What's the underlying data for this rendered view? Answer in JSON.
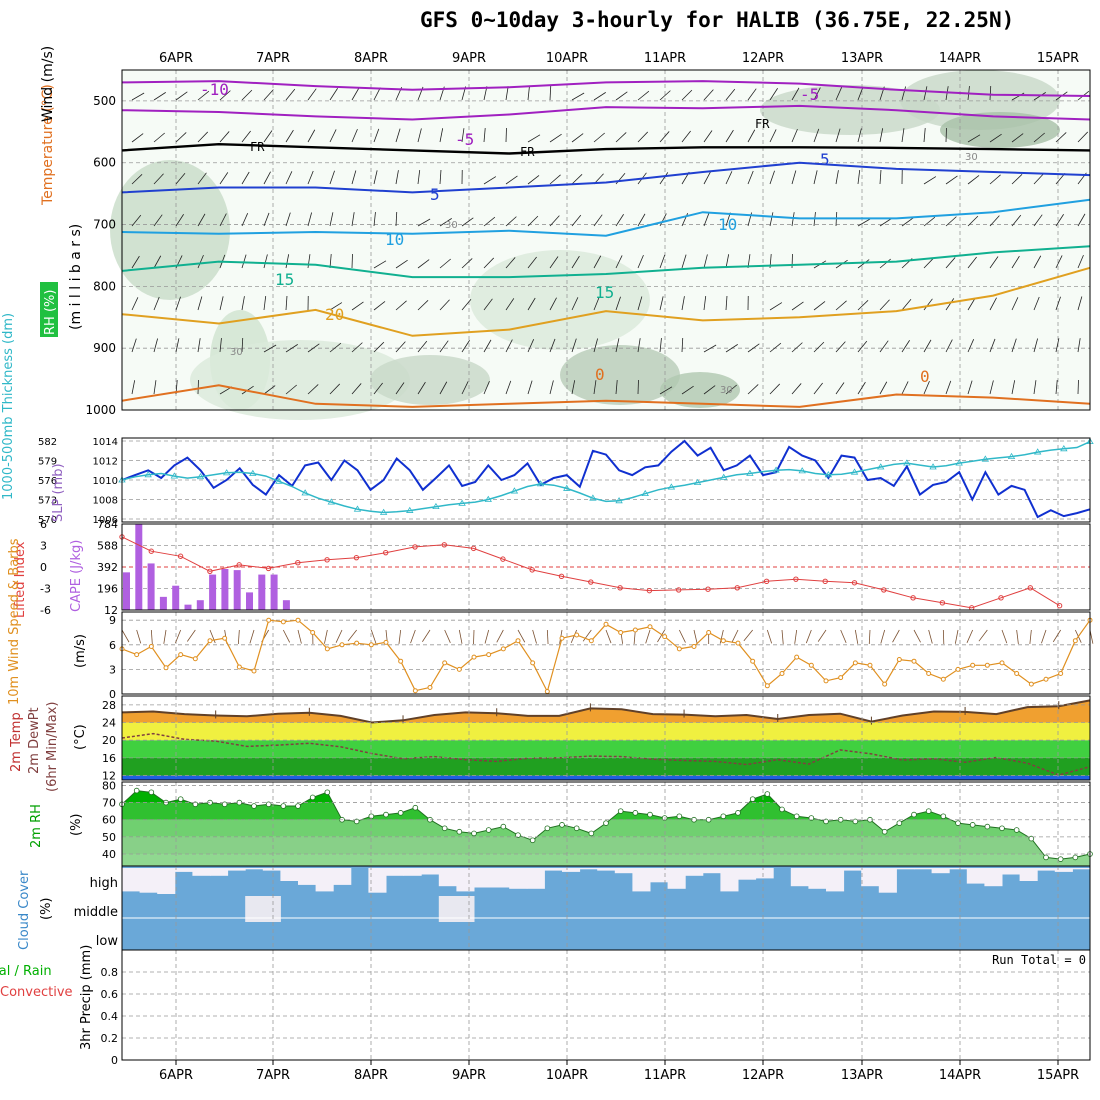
{
  "title": "GFS 0~10day 3-hourly for HALIB (36.75E, 22.25N)",
  "chart_data": [
    {
      "type": "heatmap",
      "panel": "upper-air",
      "ylabel_parts": [
        "RH (%)",
        "Temperature (°C)",
        "Wind (m/s)"
      ],
      "ylabel2": "(m i l l i b a r s)",
      "ylim": [
        1000,
        450
      ],
      "yticks": [
        500,
        600,
        700,
        800,
        900,
        1000
      ],
      "x_top": [
        "6APR",
        "7APR",
        "8APR",
        "9APR",
        "10APR",
        "11APR",
        "12APR",
        "13APR",
        "14APR",
        "15APR"
      ],
      "temperature_contours": [
        {
          "label": "-10",
          "color": "#a020c0",
          "pressure": [
            470,
            468,
            476,
            482,
            478,
            470,
            468,
            472,
            482,
            490,
            492
          ]
        },
        {
          "label": "-5",
          "color": "#a020c0",
          "pressure": [
            515,
            518,
            525,
            530,
            522,
            510,
            512,
            508,
            515,
            525,
            530
          ]
        },
        {
          "label": "FR",
          "color": "#000000",
          "pressure": [
            580,
            570,
            575,
            580,
            585,
            578,
            575,
            575,
            576,
            578,
            580
          ]
        },
        {
          "label": "5",
          "color": "#2040d0",
          "pressure": [
            648,
            640,
            640,
            648,
            640,
            632,
            615,
            600,
            610,
            615,
            620
          ]
        },
        {
          "label": "10",
          "color": "#20a0e0",
          "pressure": [
            712,
            715,
            712,
            715,
            710,
            718,
            680,
            690,
            690,
            680,
            660
          ]
        },
        {
          "label": "15",
          "color": "#10b090",
          "pressure": [
            775,
            760,
            765,
            785,
            785,
            780,
            770,
            765,
            760,
            745,
            735
          ]
        },
        {
          "label": "20",
          "color": "#e0a020",
          "pressure": [
            845,
            860,
            838,
            880,
            870,
            840,
            855,
            850,
            840,
            815,
            770
          ]
        },
        {
          "label": "0",
          "color": "#e07020",
          "pressure": [
            985,
            960,
            990,
            995,
            990,
            985,
            990,
            995,
            975,
            980,
            990
          ]
        }
      ],
      "contour_labels": [
        "-10",
        "-5",
        "-5",
        "FR",
        "FR",
        "FR",
        "5",
        "5",
        "10",
        "10",
        "15",
        "15",
        "20",
        "0",
        "0"
      ],
      "rh_labels": [
        "30",
        "30",
        "30",
        "30"
      ]
    },
    {
      "type": "line",
      "panel": "pressure",
      "ylabel_left": "1000-500mb Thickness (dm)",
      "ylabel_right": "SLP (mb)",
      "left_ticks": [
        570,
        573,
        576,
        579,
        582
      ],
      "right_ticks": [
        1006,
        1008,
        1010,
        1012,
        1014
      ],
      "series": [
        {
          "name": "SLP (mb)",
          "color": "#1030d0",
          "values": [
            1010.0,
            1010.5,
            1011.0,
            1010.2,
            1011.5,
            1012.3,
            1011.0,
            1009.2,
            1010.0,
            1011.2,
            1009.5,
            1008.5,
            1010.5,
            1009.4,
            1011.5,
            1011.8,
            1010.0,
            1012.0,
            1011.0,
            1009.0,
            1010.0,
            1012.2,
            1011.0,
            1009.0,
            1010.2,
            1011.5,
            1009.4,
            1009.8,
            1011.5,
            1010.0,
            1010.5,
            1011.7,
            1009.5,
            1010.2,
            1010.5,
            1009.3,
            1013.0,
            1012.6,
            1011.0,
            1010.5,
            1011.3,
            1011.5,
            1012.9,
            1014.0,
            1012.5,
            1013.3,
            1011.0,
            1011.5,
            1012.5,
            1010.5,
            1010.8,
            1013.4,
            1012.5,
            1012.0,
            1010.2,
            1012.5,
            1012.3,
            1010.0,
            1010.2,
            1009.4,
            1011.4,
            1008.5,
            1009.5,
            1009.8,
            1010.8,
            1008.0,
            1010.8,
            1008.5,
            1009.4,
            1009.0,
            1006.2,
            1006.9,
            1006.3,
            1006.6,
            1007.0
          ]
        },
        {
          "name": "Thickness (dm)",
          "color": "#30b8c8",
          "values": [
            576.0,
            576.5,
            576.8,
            577.0,
            576.6,
            576.3,
            576.5,
            576.8,
            577.1,
            577.2,
            577.0,
            576.6,
            575.8,
            575.0,
            574.0,
            573.2,
            572.6,
            572.0,
            571.5,
            571.2,
            571.0,
            571.1,
            571.3,
            571.6,
            571.9,
            572.2,
            572.4,
            572.6,
            573.0,
            573.6,
            574.3,
            575.0,
            575.4,
            575.2,
            574.7,
            574.0,
            573.2,
            572.7,
            572.8,
            573.3,
            573.9,
            574.5,
            574.9,
            575.2,
            575.6,
            576.0,
            576.4,
            576.8,
            577.0,
            577.3,
            577.5,
            577.6,
            577.4,
            577.0,
            576.8,
            576.9,
            577.2,
            577.6,
            578.0,
            578.4,
            578.6,
            578.3,
            578.0,
            578.2,
            578.6,
            578.9,
            579.2,
            579.4,
            579.6,
            579.9,
            580.3,
            580.6,
            580.8,
            581.0,
            581.9
          ]
        }
      ]
    },
    {
      "type": "bar",
      "panel": "stability",
      "ylabel_left": "Lifted Index",
      "ylabel_right": "CAPE (J/kg)",
      "left_ticks": [
        "6",
        "3",
        "0",
        "-3",
        "-6"
      ],
      "right_ticks": [
        "12",
        "196",
        "392",
        "588",
        "784"
      ],
      "series": [
        {
          "name": "CAPE (J/kg)",
          "color": "#b060e0",
          "values": [
            350,
            780,
            430,
            130,
            230,
            60,
            100,
            330,
            380,
            370,
            170,
            330,
            330,
            100
          ]
        },
        {
          "name": "Lifted Index",
          "color": "#e04040",
          "values": [
            -4.2,
            -2.2,
            -1.5,
            0.6,
            -0.3,
            0.2,
            -0.6,
            -1.0,
            -1.3,
            -2.0,
            -2.8,
            -3.1,
            -2.6,
            -1.1,
            0.4,
            1.3,
            2.1,
            2.9,
            3.3,
            3.2,
            3.1,
            2.9,
            2.0,
            1.7,
            2.0,
            2.2,
            3.2,
            4.3,
            5.0,
            5.7,
            4.3,
            2.9,
            5.4
          ]
        }
      ]
    },
    {
      "type": "line",
      "panel": "wind10m",
      "ylabel": "10m Wind Speed & Barbs",
      "yunit": "(m/s)",
      "yticks": [
        0,
        3,
        6,
        9
      ],
      "series": [
        {
          "name": "10m Wind Speed",
          "color": "#e09020",
          "values": [
            5.5,
            4.8,
            5.8,
            3.2,
            4.8,
            4.3,
            6.5,
            6.8,
            3.3,
            2.8,
            9.0,
            8.8,
            9.0,
            7.5,
            5.5,
            6.0,
            6.2,
            6.0,
            6.3,
            4.0,
            0.4,
            0.8,
            3.8,
            3.0,
            4.5,
            4.8,
            5.5,
            6.5,
            3.8,
            0.3,
            6.8,
            7.2,
            6.5,
            8.5,
            7.5,
            7.8,
            8.2,
            7.0,
            5.5,
            5.8,
            7.5,
            6.5,
            6.2,
            4.0,
            1.0,
            2.5,
            4.5,
            3.5,
            1.6,
            2.0,
            3.8,
            3.5,
            1.2,
            4.2,
            4.0,
            2.5,
            1.8,
            3.0,
            3.5,
            3.5,
            3.8,
            2.5,
            1.2,
            1.8,
            2.5,
            6.5,
            9.0
          ]
        }
      ]
    },
    {
      "type": "area",
      "panel": "temperature2m",
      "ylabel_parts": [
        "2m Temp",
        "2m DewPt",
        "(6hr Min/Max)"
      ],
      "yunit": "(°C)",
      "yticks": [
        12,
        16,
        20,
        24,
        28
      ],
      "series": [
        {
          "name": "2m Temp",
          "color": "#604028",
          "values": [
            26.3,
            26.5,
            25.9,
            25.6,
            25.4,
            26.0,
            26.2,
            25.5,
            24.0,
            24.5,
            25.7,
            26.3,
            26.1,
            25.5,
            25.5,
            27.2,
            27.0,
            25.9,
            25.8,
            25.4,
            25.7,
            24.8,
            25.7,
            26.0,
            24.2,
            25.6,
            26.5,
            26.4,
            25.9,
            27.5,
            27.7,
            29.0
          ]
        },
        {
          "name": "2m DewPt",
          "color": "#804040",
          "values": [
            20.5,
            21.5,
            20.2,
            19.8,
            18.6,
            18.9,
            19.3,
            18.5,
            17.0,
            15.8,
            16.3,
            15.6,
            15.2,
            15.9,
            16.0,
            16.4,
            16.3,
            15.7,
            15.4,
            15.2,
            14.5,
            15.6,
            14.6,
            17.8,
            16.9,
            15.5,
            15.8,
            15.0,
            16.1,
            14.8,
            12.1,
            14.0
          ]
        }
      ]
    },
    {
      "type": "area",
      "panel": "rh2m",
      "ylabel": "2m RH",
      "yunit": "(%)",
      "yticks": [
        40,
        50,
        60,
        70,
        80
      ],
      "series": [
        {
          "name": "2m RH",
          "color": "#00d000",
          "values": [
            69,
            77,
            76,
            70,
            72,
            69,
            70,
            69,
            70,
            68,
            69,
            68,
            68,
            73,
            76,
            60,
            59,
            62,
            63,
            64,
            67,
            60,
            55,
            53,
            52,
            54,
            56,
            51,
            48,
            55,
            57,
            55,
            52,
            58,
            65,
            64,
            63,
            61,
            62,
            60,
            60,
            62,
            64,
            72,
            75,
            66,
            62,
            61,
            59,
            60,
            59,
            60,
            53,
            58,
            63,
            65,
            62,
            58,
            57,
            56,
            55,
            54,
            49,
            38,
            37,
            38,
            40
          ]
        }
      ]
    },
    {
      "type": "area",
      "panel": "cloudcover",
      "ylabel": "Cloud Cover",
      "yunit": "(%)",
      "levels": [
        "high",
        "middle",
        "low"
      ],
      "high_values": [
        10,
        5,
        0,
        85,
        70,
        70,
        90,
        95,
        90,
        50,
        35,
        10,
        35,
        100,
        5,
        70,
        70,
        75,
        30,
        10,
        25,
        25,
        20,
        20,
        90,
        85,
        95,
        90,
        80,
        10,
        45,
        20,
        70,
        80,
        10,
        55,
        60,
        100,
        30,
        20,
        10,
        90,
        30,
        5,
        95,
        95,
        80,
        95,
        40,
        30,
        75,
        50,
        90,
        85,
        95
      ],
      "middle_values": [
        15,
        15,
        15,
        15,
        15,
        15,
        15,
        10,
        5,
        15,
        15,
        15,
        15,
        15,
        15,
        15,
        15,
        15,
        10,
        10,
        20,
        20,
        20,
        20,
        20,
        20,
        15,
        15,
        15,
        15,
        15,
        15,
        20,
        20,
        20,
        20,
        20,
        20,
        20,
        15,
        15,
        15,
        15,
        15,
        15,
        15,
        15,
        15,
        15,
        15,
        15,
        15,
        15,
        15,
        15
      ]
    },
    {
      "type": "bar",
      "panel": "precip",
      "ylabel_parts": [
        "Total / Rain",
        "Convective"
      ],
      "ylabel2": "3hr Precip (mm)",
      "yticks": [
        "0",
        "0.2",
        "0.4",
        "0.6",
        "0.8"
      ],
      "run_total": "Run Total = 0",
      "series": [
        {
          "name": "3hr Precip",
          "values": []
        }
      ]
    }
  ],
  "x_axis": {
    "labels": [
      "6APR",
      "7APR",
      "8APR",
      "9APR",
      "10APR",
      "11APR",
      "12APR",
      "13APR",
      "14APR",
      "15APR"
    ]
  }
}
